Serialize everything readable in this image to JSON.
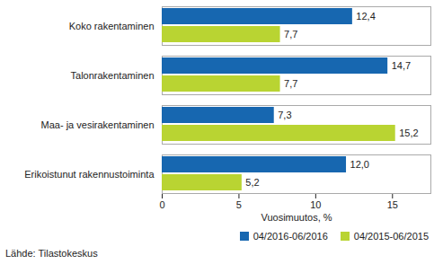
{
  "chart_data": {
    "type": "bar",
    "orientation": "horizontal",
    "categories": [
      "Koko rakentaminen",
      "Talonrakentaminen",
      "Maa- ja vesirakentaminen",
      "Erikoistunut rakennustoiminta"
    ],
    "series": [
      {
        "name": "04/2016-06/2016",
        "color": "#1767b0",
        "values": [
          12.4,
          14.7,
          7.3,
          12.0
        ],
        "value_labels": [
          "12,4",
          "14,7",
          "7,3",
          "12,0"
        ]
      },
      {
        "name": "04/2015-06/2015",
        "color": "#b9d432",
        "values": [
          7.7,
          7.7,
          15.2,
          5.2
        ],
        "value_labels": [
          "7,7",
          "7,7",
          "15,2",
          "5,2"
        ]
      }
    ],
    "x_label": "Vuosimuutos, %",
    "xlim": [
      0,
      17.5
    ],
    "xticks": [
      0,
      5,
      10,
      15
    ],
    "grid": false,
    "data_labels": true,
    "legend": "bottom-right",
    "caption": "Lähde: Tilastokeskus"
  }
}
